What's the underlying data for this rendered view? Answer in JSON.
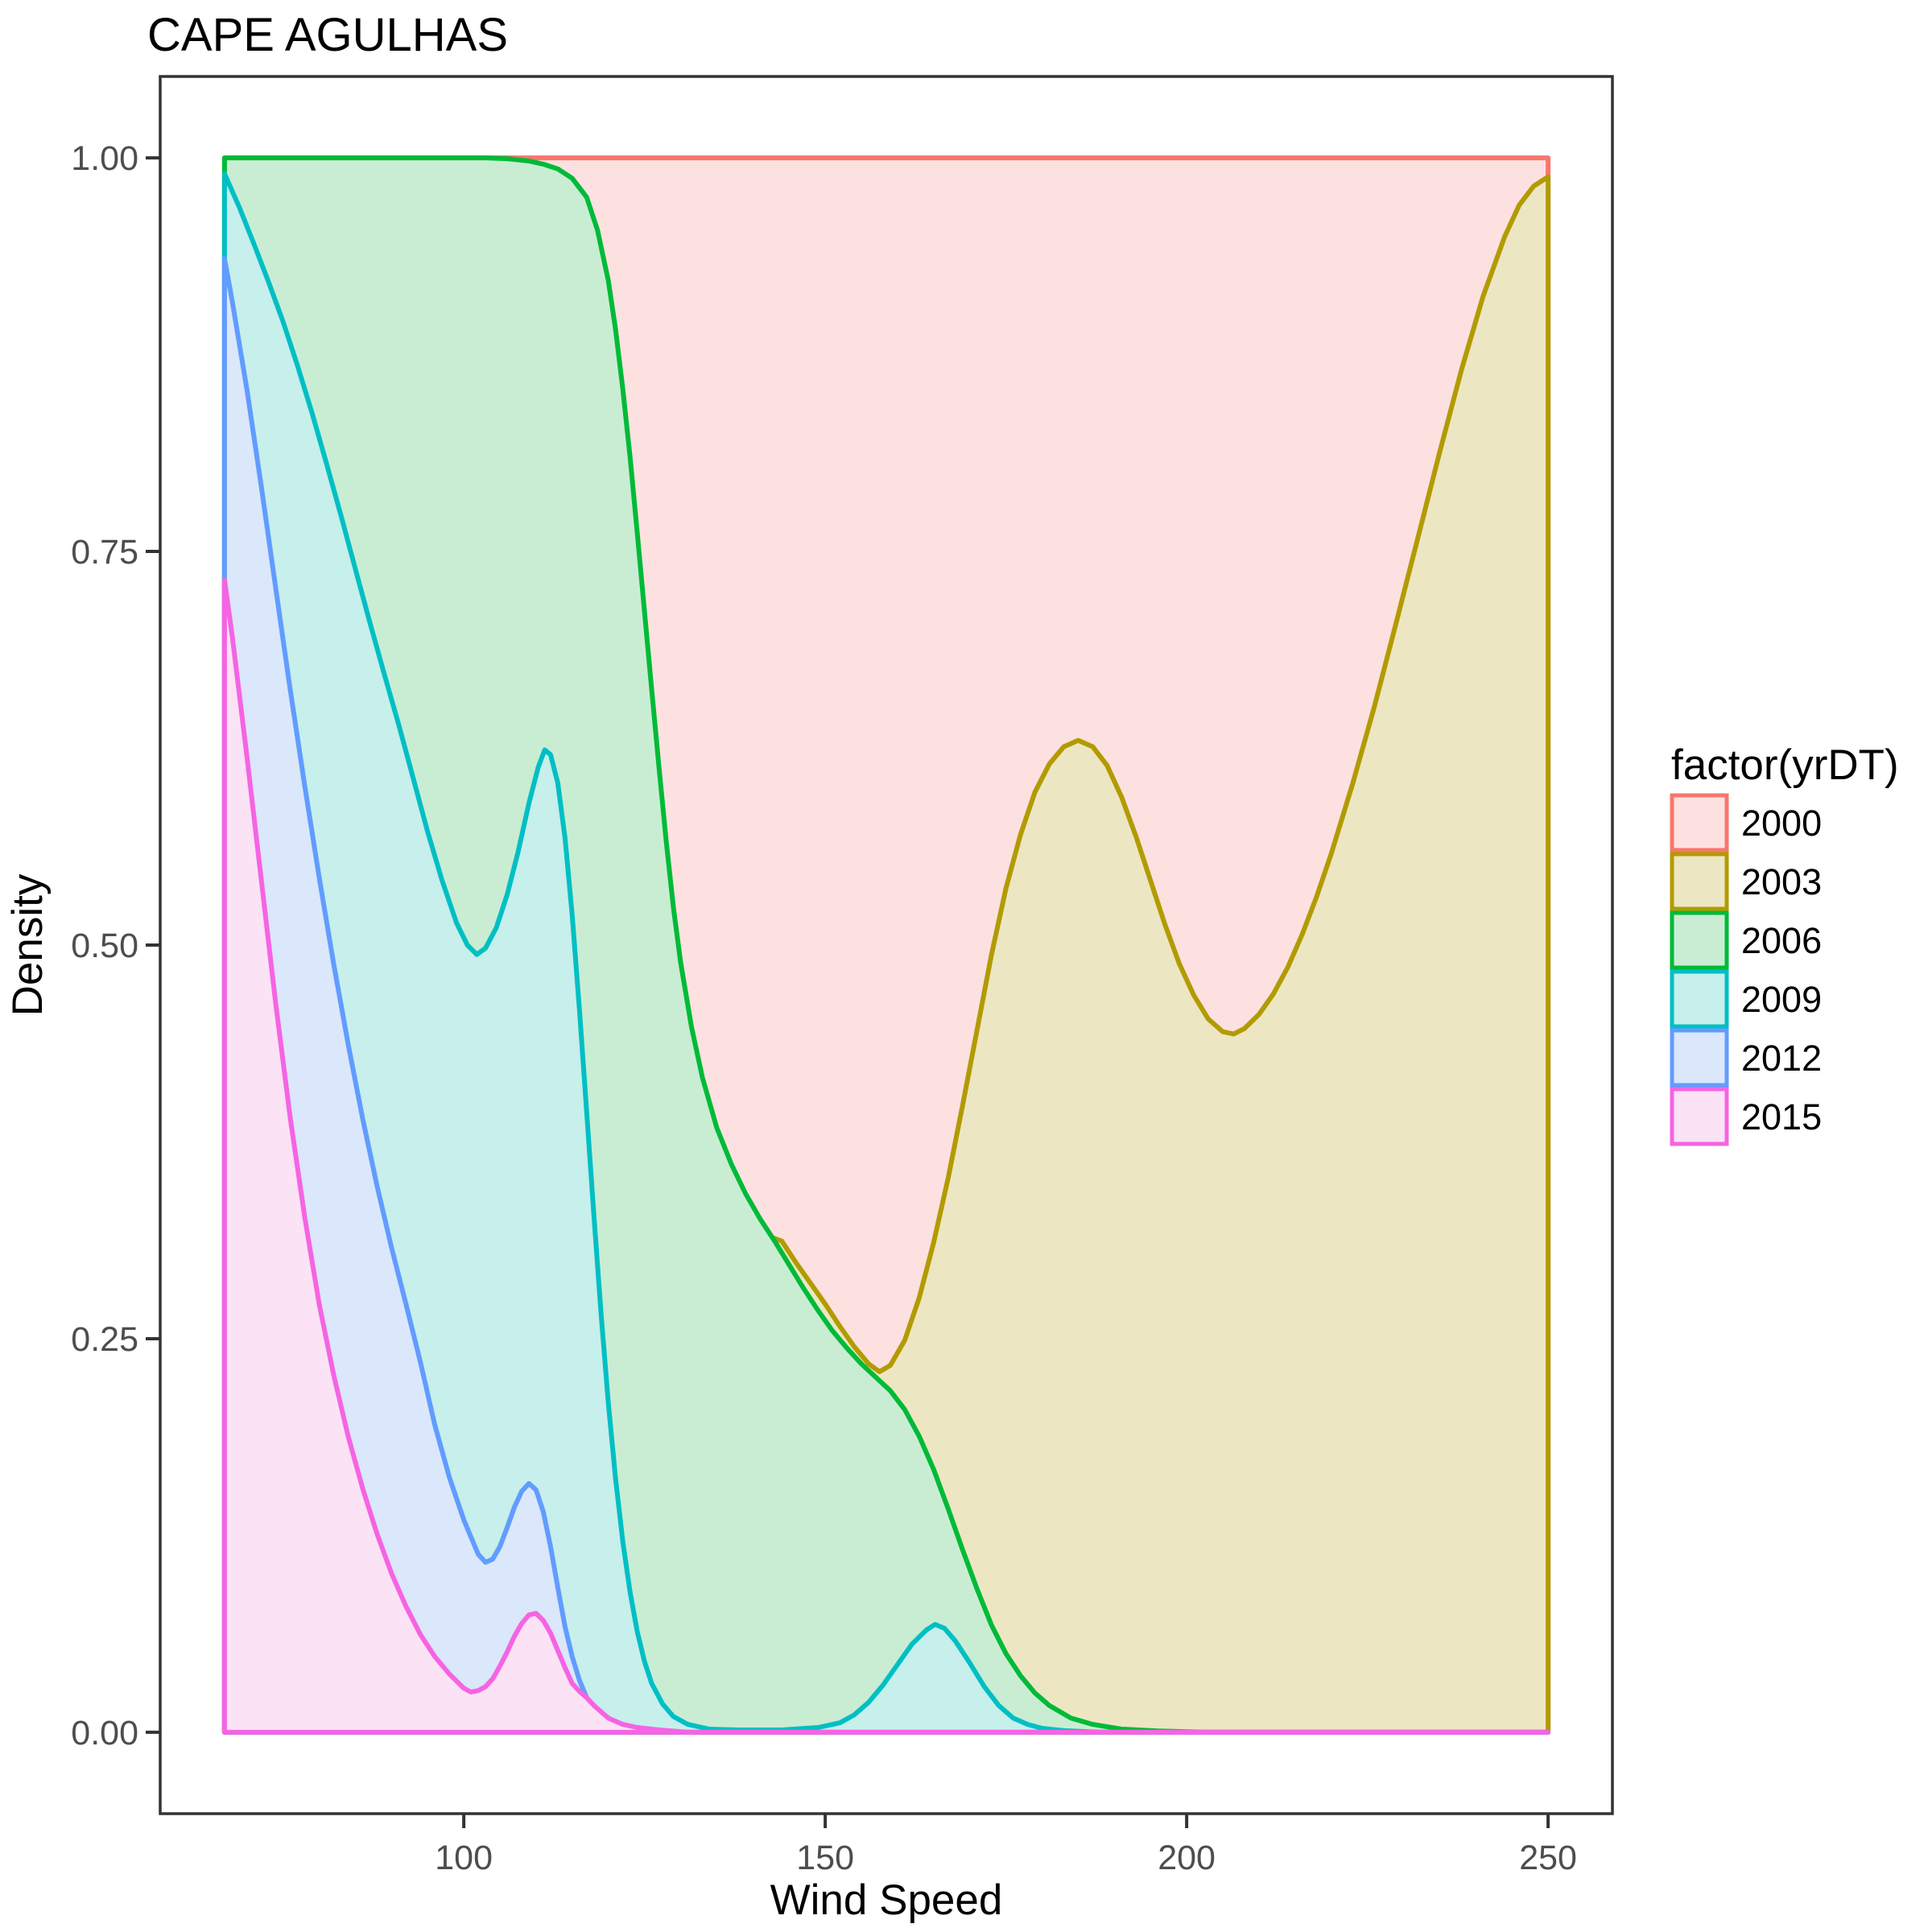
{
  "title": "CAPE AGULHAS",
  "axes": {
    "x": {
      "label": "Wind Speed"
    },
    "y": {
      "label": "Density"
    }
  },
  "legend": {
    "title": "factor(yrDT)",
    "entries": [
      "2000",
      "2003",
      "2006",
      "2009",
      "2012",
      "2015"
    ]
  },
  "chart_data": {
    "type": "area",
    "subtype": "scaled-density-curves",
    "title": "CAPE AGULHAS",
    "xlabel": "Wind Speed",
    "ylabel": "Density",
    "legend_title": "factor(yrDT)",
    "legend_position": "right",
    "grid": false,
    "panel_border_color": "#333333",
    "tick_color": "#333333",
    "tick_label_color": "#4d4d4d",
    "xlim": [
      66.9,
      250
    ],
    "ylim": [
      0,
      1
    ],
    "x_ticks": [
      {
        "label": "100",
        "value": 100
      },
      {
        "label": "150",
        "value": 150
      },
      {
        "label": "200",
        "value": 200
      },
      {
        "label": "250",
        "value": 250
      }
    ],
    "y_ticks": [
      {
        "label": "1.00",
        "value": 1.0
      },
      {
        "label": "0.75",
        "value": 0.75
      },
      {
        "label": "0.50",
        "value": 0.5
      },
      {
        "label": "0.25",
        "value": 0.25
      },
      {
        "label": "0.00",
        "value": 0.0
      }
    ],
    "series": [
      {
        "name": "2000",
        "stroke": "#F8766D",
        "fill": "#FCE1E0",
        "points": [
          [
            66.9,
            0
          ],
          [
            66.9,
            1
          ],
          [
            250,
            1
          ],
          [
            250,
            0
          ]
        ]
      },
      {
        "name": "2003",
        "stroke": "#B29B00",
        "fill": "#EDE6C3",
        "points": [
          [
            112,
            0
          ],
          [
            117,
            0.04
          ],
          [
            122,
            0.13
          ],
          [
            126,
            0.215
          ],
          [
            129,
            0.275
          ],
          [
            132,
            0.316
          ],
          [
            135,
            0.325
          ],
          [
            138,
            0.321
          ],
          [
            141,
            0.317
          ],
          [
            144,
            0.312
          ],
          [
            146,
            0.298
          ],
          [
            148,
            0.285
          ],
          [
            150,
            0.272
          ],
          [
            152,
            0.258
          ],
          [
            154,
            0.245
          ],
          [
            156,
            0.234
          ],
          [
            157.5,
            0.229
          ],
          [
            159,
            0.233
          ],
          [
            161,
            0.249
          ],
          [
            163,
            0.276
          ],
          [
            165,
            0.311
          ],
          [
            167,
            0.352
          ],
          [
            169,
            0.398
          ],
          [
            171,
            0.446
          ],
          [
            173,
            0.494
          ],
          [
            175,
            0.536
          ],
          [
            177,
            0.57
          ],
          [
            179,
            0.597
          ],
          [
            181,
            0.615
          ],
          [
            183,
            0.626
          ],
          [
            185,
            0.63
          ],
          [
            187,
            0.626
          ],
          [
            189,
            0.614
          ],
          [
            191,
            0.594
          ],
          [
            193,
            0.569
          ],
          [
            195,
            0.541
          ],
          [
            197,
            0.513
          ],
          [
            199,
            0.488
          ],
          [
            201,
            0.468
          ],
          [
            203,
            0.453
          ],
          [
            205,
            0.445
          ],
          [
            206.5,
            0.4435
          ],
          [
            208,
            0.447
          ],
          [
            210,
            0.456
          ],
          [
            212,
            0.469
          ],
          [
            214,
            0.486
          ],
          [
            216,
            0.507
          ],
          [
            218,
            0.531
          ],
          [
            220,
            0.558
          ],
          [
            223,
            0.603
          ],
          [
            226,
            0.652
          ],
          [
            229,
            0.705
          ],
          [
            232,
            0.759
          ],
          [
            235,
            0.813
          ],
          [
            238,
            0.865
          ],
          [
            241,
            0.912
          ],
          [
            244,
            0.95
          ],
          [
            246,
            0.97
          ],
          [
            248,
            0.982
          ],
          [
            250,
            0.988
          ],
          [
            250,
            0
          ]
        ]
      },
      {
        "name": "2006",
        "stroke": "#00BA38",
        "fill": "#C9EDD3",
        "points": [
          [
            66.9,
            0
          ],
          [
            66.9,
            1
          ],
          [
            95,
            1
          ],
          [
            103,
            1
          ],
          [
            106,
            0.9995
          ],
          [
            109,
            0.998
          ],
          [
            111,
            0.996
          ],
          [
            113,
            0.993
          ],
          [
            115,
            0.987
          ],
          [
            117,
            0.975
          ],
          [
            118.5,
            0.954
          ],
          [
            120,
            0.922
          ],
          [
            121,
            0.891
          ],
          [
            122,
            0.853
          ],
          [
            123,
            0.81
          ],
          [
            124,
            0.762
          ],
          [
            125,
            0.712
          ],
          [
            126,
            0.662
          ],
          [
            127,
            0.613
          ],
          [
            128,
            0.566
          ],
          [
            129,
            0.524
          ],
          [
            130,
            0.489
          ],
          [
            131.5,
            0.448
          ],
          [
            133,
            0.416
          ],
          [
            135,
            0.384
          ],
          [
            137,
            0.361
          ],
          [
            139,
            0.342
          ],
          [
            141,
            0.326
          ],
          [
            143,
            0.312
          ],
          [
            145,
            0.297
          ],
          [
            147,
            0.282
          ],
          [
            149,
            0.268
          ],
          [
            151,
            0.255
          ],
          [
            153,
            0.244
          ],
          [
            155,
            0.234
          ],
          [
            157,
            0.2255
          ],
          [
            159,
            0.217
          ],
          [
            161,
            0.205
          ],
          [
            163,
            0.188
          ],
          [
            165,
            0.167
          ],
          [
            167,
            0.142
          ],
          [
            169,
            0.116
          ],
          [
            171,
            0.091
          ],
          [
            173,
            0.068
          ],
          [
            175,
            0.05
          ],
          [
            177,
            0.036
          ],
          [
            179,
            0.025
          ],
          [
            181,
            0.017
          ],
          [
            184,
            0.009
          ],
          [
            187,
            0.005
          ],
          [
            191,
            0.002
          ],
          [
            196,
            0.0008
          ],
          [
            203,
            0
          ],
          [
            250,
            0
          ]
        ]
      },
      {
        "name": "2009",
        "stroke": "#00BFC4",
        "fill": "#C7EFEB",
        "points": [
          [
            66.9,
            0
          ],
          [
            66.9,
            0.99
          ],
          [
            69,
            0.968
          ],
          [
            71,
            0.945
          ],
          [
            73,
            0.921
          ],
          [
            75,
            0.896
          ],
          [
            77,
            0.868
          ],
          [
            79,
            0.838
          ],
          [
            81,
            0.806
          ],
          [
            83,
            0.773
          ],
          [
            85,
            0.739
          ],
          [
            87,
            0.705
          ],
          [
            89,
            0.672
          ],
          [
            91,
            0.64
          ],
          [
            93,
            0.606
          ],
          [
            95,
            0.572
          ],
          [
            97,
            0.541
          ],
          [
            99,
            0.514
          ],
          [
            100.5,
            0.5
          ],
          [
            101.8,
            0.494
          ],
          [
            103,
            0.498
          ],
          [
            104.5,
            0.511
          ],
          [
            106,
            0.532
          ],
          [
            107.5,
            0.559
          ],
          [
            109,
            0.59
          ],
          [
            110.3,
            0.613
          ],
          [
            111.2,
            0.624
          ],
          [
            112,
            0.621
          ],
          [
            113,
            0.603
          ],
          [
            114,
            0.568
          ],
          [
            115,
            0.519
          ],
          [
            116,
            0.459
          ],
          [
            117,
            0.394
          ],
          [
            118,
            0.328
          ],
          [
            119,
            0.265
          ],
          [
            120,
            0.209
          ],
          [
            121,
            0.161
          ],
          [
            122,
            0.121
          ],
          [
            123,
            0.089
          ],
          [
            124,
            0.064
          ],
          [
            125,
            0.045
          ],
          [
            126,
            0.031
          ],
          [
            127.5,
            0.018
          ],
          [
            129,
            0.01
          ],
          [
            131,
            0.005
          ],
          [
            134,
            0.002
          ],
          [
            138,
            0.0015
          ],
          [
            144,
            0.0015
          ],
          [
            149,
            0.003
          ],
          [
            152,
            0.006
          ],
          [
            154,
            0.011
          ],
          [
            156,
            0.019
          ],
          [
            158,
            0.03
          ],
          [
            160,
            0.043
          ],
          [
            162,
            0.056
          ],
          [
            164,
            0.065
          ],
          [
            165.2,
            0.0685
          ],
          [
            166.5,
            0.066
          ],
          [
            168,
            0.058
          ],
          [
            170,
            0.044
          ],
          [
            172,
            0.029
          ],
          [
            174,
            0.017
          ],
          [
            176,
            0.009
          ],
          [
            178,
            0.005
          ],
          [
            180,
            0.0025
          ],
          [
            183,
            0.001
          ],
          [
            188,
            0
          ],
          [
            250,
            0
          ]
        ]
      },
      {
        "name": "2012",
        "stroke": "#619CFF",
        "fill": "#DBE7FA",
        "points": [
          [
            66.9,
            0
          ],
          [
            66.9,
            0.936
          ],
          [
            68,
            0.908
          ],
          [
            70,
            0.853
          ],
          [
            72,
            0.791
          ],
          [
            74,
            0.726
          ],
          [
            76,
            0.662
          ],
          [
            78,
            0.601
          ],
          [
            80,
            0.543
          ],
          [
            82,
            0.488
          ],
          [
            84,
            0.437
          ],
          [
            86,
            0.39
          ],
          [
            88,
            0.347
          ],
          [
            90,
            0.308
          ],
          [
            92,
            0.272
          ],
          [
            94,
            0.235
          ],
          [
            96,
            0.195
          ],
          [
            98,
            0.162
          ],
          [
            100,
            0.135
          ],
          [
            101,
            0.124
          ],
          [
            102,
            0.113
          ],
          [
            103,
            0.108
          ],
          [
            104,
            0.11
          ],
          [
            105,
            0.118
          ],
          [
            106,
            0.13
          ],
          [
            107,
            0.143
          ],
          [
            108,
            0.153
          ],
          [
            109,
            0.158
          ],
          [
            110,
            0.154
          ],
          [
            111,
            0.14
          ],
          [
            112,
            0.118
          ],
          [
            113,
            0.092
          ],
          [
            114,
            0.067
          ],
          [
            115,
            0.048
          ],
          [
            116,
            0.033
          ],
          [
            117,
            0.022
          ],
          [
            118,
            0.014
          ],
          [
            119.5,
            0.008
          ],
          [
            121,
            0.005
          ],
          [
            123,
            0.003
          ],
          [
            126,
            0.0015
          ],
          [
            130,
            0
          ],
          [
            250,
            0
          ]
        ]
      },
      {
        "name": "2015",
        "stroke": "#F564E3",
        "fill": "#FBE2F5",
        "points": [
          [
            66.9,
            0
          ],
          [
            66.9,
            0.732
          ],
          [
            68,
            0.695
          ],
          [
            70,
            0.62
          ],
          [
            72,
            0.541
          ],
          [
            74,
            0.462
          ],
          [
            76,
            0.39
          ],
          [
            78,
            0.327
          ],
          [
            80,
            0.272
          ],
          [
            82,
            0.227
          ],
          [
            84,
            0.188
          ],
          [
            86,
            0.155
          ],
          [
            88,
            0.126
          ],
          [
            90,
            0.101
          ],
          [
            92,
            0.08
          ],
          [
            94,
            0.062
          ],
          [
            96,
            0.048
          ],
          [
            98,
            0.037
          ],
          [
            100,
            0.028
          ],
          [
            101,
            0.0255
          ],
          [
            102,
            0.0265
          ],
          [
            103,
            0.029
          ],
          [
            104,
            0.034
          ],
          [
            105,
            0.042
          ],
          [
            106,
            0.051
          ],
          [
            107,
            0.061
          ],
          [
            108,
            0.069
          ],
          [
            109,
            0.0745
          ],
          [
            110,
            0.0755
          ],
          [
            111,
            0.071
          ],
          [
            112,
            0.063
          ],
          [
            113,
            0.052
          ],
          [
            114,
            0.041
          ],
          [
            115,
            0.031
          ],
          [
            116,
            0.026
          ],
          [
            117,
            0.022
          ],
          [
            118,
            0.017
          ],
          [
            119,
            0.013
          ],
          [
            120,
            0.009
          ],
          [
            122,
            0.005
          ],
          [
            124,
            0.003
          ],
          [
            127,
            0.0015
          ],
          [
            131,
            0
          ],
          [
            250,
            0
          ]
        ]
      }
    ]
  }
}
